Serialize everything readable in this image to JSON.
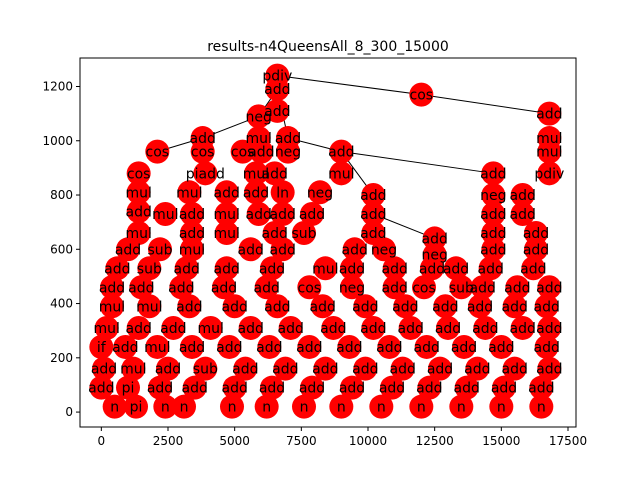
{
  "chart_data": {
    "type": "scatter",
    "title": "results-n4QueensAll_8_300_15000",
    "xlabel": "",
    "ylabel": "",
    "xlim": [
      -800,
      17800
    ],
    "ylim": [
      -55,
      1305
    ],
    "x_ticks": [
      0,
      2500,
      5000,
      7500,
      10000,
      12500,
      15000,
      17500
    ],
    "y_ticks": [
      0,
      200,
      400,
      600,
      800,
      1000,
      1200
    ],
    "grid": false,
    "legend": "none",
    "node_color": "#ff0000",
    "edge_color": "#000000",
    "nodes": [
      {
        "x": 6600,
        "y": 1240,
        "label": "pdiv"
      },
      {
        "x": 6600,
        "y": 1190,
        "label": "add"
      },
      {
        "x": 12000,
        "y": 1170,
        "label": "cos"
      },
      {
        "x": 16800,
        "y": 1100,
        "label": "add"
      },
      {
        "x": 6600,
        "y": 1110,
        "label": "add"
      },
      {
        "x": 5900,
        "y": 1090,
        "label": "neg"
      },
      {
        "x": 5900,
        "y": 1010,
        "label": "mul"
      },
      {
        "x": 7000,
        "y": 1010,
        "label": "add"
      },
      {
        "x": 3800,
        "y": 1010,
        "label": "add"
      },
      {
        "x": 16800,
        "y": 1010,
        "label": "mul"
      },
      {
        "x": 2100,
        "y": 960,
        "label": "cos"
      },
      {
        "x": 3800,
        "y": 960,
        "label": "cos"
      },
      {
        "x": 5300,
        "y": 960,
        "label": "cos"
      },
      {
        "x": 6000,
        "y": 960,
        "label": "add"
      },
      {
        "x": 7000,
        "y": 960,
        "label": "neg"
      },
      {
        "x": 9000,
        "y": 960,
        "label": "add"
      },
      {
        "x": 16800,
        "y": 960,
        "label": "mul"
      },
      {
        "x": 1400,
        "y": 880,
        "label": "cos"
      },
      {
        "x": 3900,
        "y": 880,
        "label": "piadd"
      },
      {
        "x": 5800,
        "y": 880,
        "label": "mul"
      },
      {
        "x": 6500,
        "y": 880,
        "label": "add"
      },
      {
        "x": 9000,
        "y": 880,
        "label": "mul"
      },
      {
        "x": 14700,
        "y": 880,
        "label": "add"
      },
      {
        "x": 16800,
        "y": 880,
        "label": "pdiv"
      },
      {
        "x": 1400,
        "y": 810,
        "label": "mul"
      },
      {
        "x": 3300,
        "y": 810,
        "label": "mul"
      },
      {
        "x": 4700,
        "y": 810,
        "label": "add"
      },
      {
        "x": 5800,
        "y": 810,
        "label": "add"
      },
      {
        "x": 6800,
        "y": 810,
        "label": "ln"
      },
      {
        "x": 8200,
        "y": 810,
        "label": "neg"
      },
      {
        "x": 10200,
        "y": 800,
        "label": "add"
      },
      {
        "x": 14700,
        "y": 800,
        "label": "neg"
      },
      {
        "x": 15800,
        "y": 800,
        "label": "add"
      },
      {
        "x": 1400,
        "y": 740,
        "label": "add"
      },
      {
        "x": 2400,
        "y": 730,
        "label": "mul"
      },
      {
        "x": 3400,
        "y": 730,
        "label": "add"
      },
      {
        "x": 4700,
        "y": 730,
        "label": "mul"
      },
      {
        "x": 5900,
        "y": 730,
        "label": "add"
      },
      {
        "x": 6800,
        "y": 730,
        "label": "add"
      },
      {
        "x": 7900,
        "y": 730,
        "label": "add"
      },
      {
        "x": 10200,
        "y": 730,
        "label": "add"
      },
      {
        "x": 14700,
        "y": 730,
        "label": "add"
      },
      {
        "x": 15800,
        "y": 730,
        "label": "add"
      },
      {
        "x": 1400,
        "y": 660,
        "label": "mul"
      },
      {
        "x": 3400,
        "y": 660,
        "label": "add"
      },
      {
        "x": 4700,
        "y": 660,
        "label": "mul"
      },
      {
        "x": 6500,
        "y": 660,
        "label": "add"
      },
      {
        "x": 7600,
        "y": 660,
        "label": "sub"
      },
      {
        "x": 10200,
        "y": 660,
        "label": "add"
      },
      {
        "x": 12500,
        "y": 640,
        "label": "add"
      },
      {
        "x": 14700,
        "y": 660,
        "label": "add"
      },
      {
        "x": 16300,
        "y": 660,
        "label": "add"
      },
      {
        "x": 1000,
        "y": 600,
        "label": "add"
      },
      {
        "x": 2200,
        "y": 600,
        "label": "sub"
      },
      {
        "x": 3400,
        "y": 600,
        "label": "mul"
      },
      {
        "x": 5600,
        "y": 600,
        "label": "add"
      },
      {
        "x": 6800,
        "y": 600,
        "label": "add"
      },
      {
        "x": 9500,
        "y": 600,
        "label": "add"
      },
      {
        "x": 10600,
        "y": 600,
        "label": "neg"
      },
      {
        "x": 12500,
        "y": 580,
        "label": "neg"
      },
      {
        "x": 14700,
        "y": 600,
        "label": "add"
      },
      {
        "x": 16300,
        "y": 600,
        "label": "add"
      },
      {
        "x": 600,
        "y": 530,
        "label": "add"
      },
      {
        "x": 1800,
        "y": 530,
        "label": "sub"
      },
      {
        "x": 3200,
        "y": 530,
        "label": "add"
      },
      {
        "x": 4700,
        "y": 530,
        "label": "add"
      },
      {
        "x": 6400,
        "y": 530,
        "label": "add"
      },
      {
        "x": 8400,
        "y": 530,
        "label": "mul"
      },
      {
        "x": 9400,
        "y": 530,
        "label": "add"
      },
      {
        "x": 11000,
        "y": 530,
        "label": "add"
      },
      {
        "x": 12400,
        "y": 530,
        "label": "add"
      },
      {
        "x": 13300,
        "y": 530,
        "label": "add"
      },
      {
        "x": 14600,
        "y": 530,
        "label": "add"
      },
      {
        "x": 16200,
        "y": 530,
        "label": "add"
      },
      {
        "x": 400,
        "y": 460,
        "label": "add"
      },
      {
        "x": 1500,
        "y": 460,
        "label": "add"
      },
      {
        "x": 3000,
        "y": 460,
        "label": "add"
      },
      {
        "x": 4600,
        "y": 460,
        "label": "add"
      },
      {
        "x": 6200,
        "y": 460,
        "label": "add"
      },
      {
        "x": 7800,
        "y": 460,
        "label": "cos"
      },
      {
        "x": 9400,
        "y": 460,
        "label": "neg"
      },
      {
        "x": 11000,
        "y": 460,
        "label": "add"
      },
      {
        "x": 12100,
        "y": 460,
        "label": "cos"
      },
      {
        "x": 13500,
        "y": 460,
        "label": "sub"
      },
      {
        "x": 14300,
        "y": 460,
        "label": "add"
      },
      {
        "x": 15600,
        "y": 460,
        "label": "add"
      },
      {
        "x": 16800,
        "y": 460,
        "label": "add"
      },
      {
        "x": 400,
        "y": 390,
        "label": "mul"
      },
      {
        "x": 1800,
        "y": 390,
        "label": "mul"
      },
      {
        "x": 3300,
        "y": 390,
        "label": "add"
      },
      {
        "x": 5000,
        "y": 390,
        "label": "add"
      },
      {
        "x": 6600,
        "y": 390,
        "label": "add"
      },
      {
        "x": 8300,
        "y": 390,
        "label": "add"
      },
      {
        "x": 9900,
        "y": 390,
        "label": "add"
      },
      {
        "x": 11400,
        "y": 390,
        "label": "add"
      },
      {
        "x": 12900,
        "y": 390,
        "label": "add"
      },
      {
        "x": 14200,
        "y": 390,
        "label": "add"
      },
      {
        "x": 15500,
        "y": 390,
        "label": "add"
      },
      {
        "x": 16700,
        "y": 390,
        "label": "add"
      },
      {
        "x": 200,
        "y": 310,
        "label": "mul"
      },
      {
        "x": 1400,
        "y": 310,
        "label": "add"
      },
      {
        "x": 2700,
        "y": 310,
        "label": "add"
      },
      {
        "x": 4100,
        "y": 310,
        "label": "mul"
      },
      {
        "x": 5600,
        "y": 310,
        "label": "add"
      },
      {
        "x": 7100,
        "y": 310,
        "label": "add"
      },
      {
        "x": 8700,
        "y": 310,
        "label": "add"
      },
      {
        "x": 10200,
        "y": 310,
        "label": "add"
      },
      {
        "x": 11600,
        "y": 310,
        "label": "add"
      },
      {
        "x": 13000,
        "y": 310,
        "label": "add"
      },
      {
        "x": 14400,
        "y": 310,
        "label": "add"
      },
      {
        "x": 15800,
        "y": 310,
        "label": "add"
      },
      {
        "x": 16800,
        "y": 310,
        "label": "add"
      },
      {
        "x": 0,
        "y": 240,
        "label": "if"
      },
      {
        "x": 900,
        "y": 240,
        "label": "add"
      },
      {
        "x": 2100,
        "y": 240,
        "label": "mul"
      },
      {
        "x": 3400,
        "y": 240,
        "label": "add"
      },
      {
        "x": 4800,
        "y": 240,
        "label": "add"
      },
      {
        "x": 6300,
        "y": 240,
        "label": "add"
      },
      {
        "x": 7800,
        "y": 240,
        "label": "add"
      },
      {
        "x": 9300,
        "y": 240,
        "label": "add"
      },
      {
        "x": 10800,
        "y": 240,
        "label": "add"
      },
      {
        "x": 12200,
        "y": 240,
        "label": "add"
      },
      {
        "x": 13600,
        "y": 240,
        "label": "add"
      },
      {
        "x": 15000,
        "y": 240,
        "label": "add"
      },
      {
        "x": 16700,
        "y": 240,
        "label": "add"
      },
      {
        "x": 100,
        "y": 160,
        "label": "add"
      },
      {
        "x": 1200,
        "y": 160,
        "label": "mul"
      },
      {
        "x": 2500,
        "y": 160,
        "label": "add"
      },
      {
        "x": 3900,
        "y": 160,
        "label": "sub"
      },
      {
        "x": 5400,
        "y": 160,
        "label": "add"
      },
      {
        "x": 6900,
        "y": 160,
        "label": "add"
      },
      {
        "x": 8400,
        "y": 160,
        "label": "add"
      },
      {
        "x": 9900,
        "y": 160,
        "label": "add"
      },
      {
        "x": 11300,
        "y": 160,
        "label": "add"
      },
      {
        "x": 12700,
        "y": 160,
        "label": "add"
      },
      {
        "x": 14100,
        "y": 160,
        "label": "add"
      },
      {
        "x": 15500,
        "y": 160,
        "label": "add"
      },
      {
        "x": 16800,
        "y": 160,
        "label": "add"
      },
      {
        "x": 0,
        "y": 90,
        "label": "add"
      },
      {
        "x": 1000,
        "y": 90,
        "label": "pi"
      },
      {
        "x": 2200,
        "y": 90,
        "label": "add"
      },
      {
        "x": 3500,
        "y": 90,
        "label": "add"
      },
      {
        "x": 5000,
        "y": 90,
        "label": "add"
      },
      {
        "x": 6400,
        "y": 90,
        "label": "add"
      },
      {
        "x": 7900,
        "y": 90,
        "label": "add"
      },
      {
        "x": 9400,
        "y": 90,
        "label": "add"
      },
      {
        "x": 10900,
        "y": 90,
        "label": "add"
      },
      {
        "x": 12300,
        "y": 90,
        "label": "add"
      },
      {
        "x": 13700,
        "y": 90,
        "label": "add"
      },
      {
        "x": 15100,
        "y": 90,
        "label": "add"
      },
      {
        "x": 16500,
        "y": 90,
        "label": "add"
      },
      {
        "x": 500,
        "y": 20,
        "label": "n"
      },
      {
        "x": 1300,
        "y": 20,
        "label": "pi"
      },
      {
        "x": 2400,
        "y": 20,
        "label": "n"
      },
      {
        "x": 3100,
        "y": 20,
        "label": "n"
      },
      {
        "x": 4900,
        "y": 20,
        "label": "n"
      },
      {
        "x": 6200,
        "y": 20,
        "label": "n"
      },
      {
        "x": 7600,
        "y": 20,
        "label": "n"
      },
      {
        "x": 9000,
        "y": 20,
        "label": "n"
      },
      {
        "x": 10500,
        "y": 20,
        "label": "n"
      },
      {
        "x": 12000,
        "y": 20,
        "label": "n"
      },
      {
        "x": 13500,
        "y": 20,
        "label": "n"
      },
      {
        "x": 15000,
        "y": 20,
        "label": "n"
      },
      {
        "x": 16500,
        "y": 20,
        "label": "n"
      }
    ],
    "edges": [
      [
        [
          6600,
          1240
        ],
        [
          12000,
          1170
        ]
      ],
      [
        [
          12000,
          1170
        ],
        [
          16800,
          1100
        ]
      ],
      [
        [
          6600,
          1190
        ],
        [
          5900,
          1090
        ]
      ],
      [
        [
          5900,
          1090
        ],
        [
          3800,
          1010
        ]
      ],
      [
        [
          3800,
          1010
        ],
        [
          2100,
          960
        ]
      ],
      [
        [
          6600,
          1190
        ],
        [
          7000,
          1010
        ]
      ],
      [
        [
          7000,
          1010
        ],
        [
          9000,
          960
        ]
      ],
      [
        [
          9000,
          960
        ],
        [
          14700,
          880
        ]
      ],
      [
        [
          9000,
          960
        ],
        [
          10200,
          800
        ]
      ],
      [
        [
          10200,
          730
        ],
        [
          12500,
          640
        ]
      ]
    ]
  }
}
